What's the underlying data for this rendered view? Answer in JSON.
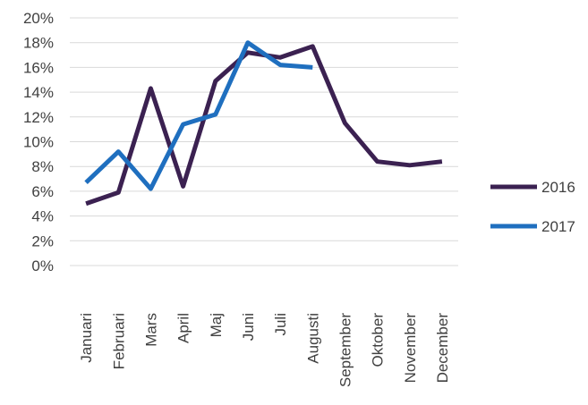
{
  "chart_data": {
    "type": "line",
    "title": "",
    "xlabel": "",
    "ylabel": "",
    "categories": [
      "Januari",
      "Februari",
      "Mars",
      "April",
      "Maj",
      "Juni",
      "Juli",
      "Augusti",
      "September",
      "Oktober",
      "November",
      "December"
    ],
    "y_ticks": [
      "0%",
      "2%",
      "4%",
      "6%",
      "8%",
      "10%",
      "12%",
      "14%",
      "16%",
      "18%",
      "20%"
    ],
    "ylim": [
      0,
      20
    ],
    "grid": true,
    "legend_position": "right",
    "series": [
      {
        "name": "2016",
        "color": "#3b2151",
        "values": [
          5.0,
          5.9,
          14.3,
          6.4,
          14.9,
          17.2,
          16.8,
          17.7,
          11.5,
          8.4,
          8.1,
          8.4
        ]
      },
      {
        "name": "2017",
        "color": "#1f6fbf",
        "values": [
          6.7,
          9.2,
          6.2,
          11.4,
          12.2,
          18.0,
          16.2,
          16.0,
          null,
          null,
          null,
          null
        ]
      }
    ]
  }
}
